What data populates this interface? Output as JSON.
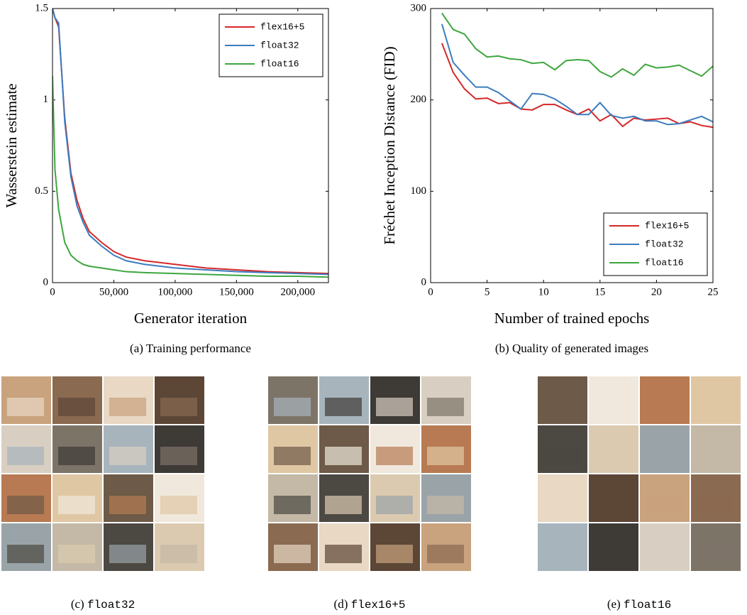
{
  "chart_data": [
    {
      "type": "line",
      "ylabel": "Wasserstein estimate",
      "xlabel": "Generator iteration",
      "caption": "(a) Training performance",
      "x": [
        0,
        2000,
        5000,
        10000,
        15000,
        20000,
        25000,
        30000,
        40000,
        50000,
        60000,
        75000,
        100000,
        125000,
        150000,
        175000,
        200000,
        225000
      ],
      "series": [
        {
          "name": "flex16+5",
          "color": "#d62728",
          "values": [
            1.5,
            1.45,
            1.4,
            0.9,
            0.6,
            0.45,
            0.35,
            0.28,
            0.22,
            0.17,
            0.14,
            0.12,
            0.1,
            0.08,
            0.07,
            0.06,
            0.055,
            0.05
          ]
        },
        {
          "name": "float32",
          "color": "#3b7dbf",
          "values": [
            1.5,
            1.45,
            1.42,
            0.88,
            0.58,
            0.42,
            0.33,
            0.26,
            0.2,
            0.15,
            0.12,
            0.1,
            0.08,
            0.07,
            0.06,
            0.055,
            0.05,
            0.045
          ]
        },
        {
          "name": "float16",
          "color": "#3da63d",
          "values": [
            1.13,
            0.62,
            0.4,
            0.22,
            0.15,
            0.12,
            0.1,
            0.09,
            0.08,
            0.07,
            0.06,
            0.055,
            0.05,
            0.045,
            0.04,
            0.035,
            0.035,
            0.03
          ]
        }
      ],
      "xlim": [
        0,
        225000
      ],
      "xticks": [
        0,
        {
          "value": 50000,
          "label": "50,000"
        },
        {
          "value": 100000,
          "label": "100,000"
        },
        {
          "value": 150000,
          "label": "150,000"
        },
        {
          "value": 200000,
          "label": "200,000"
        }
      ],
      "ylim": [
        0,
        1.5
      ],
      "yticks": [
        0,
        0.5,
        1,
        1.5
      ],
      "legend": "upper right"
    },
    {
      "type": "line",
      "ylabel": "Fréchet Inception Distance (FID)",
      "xlabel": "Number of trained epochs",
      "caption": "(b) Quality of generated images",
      "x": [
        1,
        2,
        3,
        4,
        5,
        6,
        7,
        8,
        9,
        10,
        11,
        12,
        13,
        14,
        15,
        16,
        17,
        18,
        19,
        20,
        21,
        22,
        23,
        24,
        25
      ],
      "series": [
        {
          "name": "flex16+5",
          "color": "#d62728",
          "values": [
            262,
            230,
            212,
            201,
            202,
            196,
            197,
            190,
            189,
            195,
            195,
            189,
            184,
            190,
            177,
            184,
            171,
            180,
            178,
            179,
            180,
            174,
            176,
            172,
            170
          ]
        },
        {
          "name": "float32",
          "color": "#3b7dbf",
          "values": [
            283,
            241,
            227,
            214,
            214,
            208,
            199,
            190,
            207,
            206,
            201,
            193,
            184,
            184,
            197,
            183,
            180,
            182,
            177,
            177,
            173,
            174,
            178,
            182,
            176
          ]
        },
        {
          "name": "float16",
          "color": "#3da63d",
          "values": [
            295,
            277,
            272,
            256,
            247,
            248,
            245,
            244,
            240,
            241,
            233,
            243,
            244,
            243,
            231,
            225,
            234,
            227,
            239,
            235,
            236,
            238,
            232,
            226,
            237
          ]
        }
      ],
      "xlim": [
        0,
        25
      ],
      "xticks": [
        0,
        5,
        10,
        15,
        20,
        25
      ],
      "ylim": [
        0,
        300
      ],
      "yticks": [
        0,
        100,
        200,
        300
      ],
      "legend": "lower right"
    }
  ],
  "panels": [
    {
      "label": "(c)",
      "name": "float32"
    },
    {
      "label": "(d)",
      "name": "flex16+5"
    },
    {
      "label": "(e)",
      "name": "float16"
    }
  ]
}
